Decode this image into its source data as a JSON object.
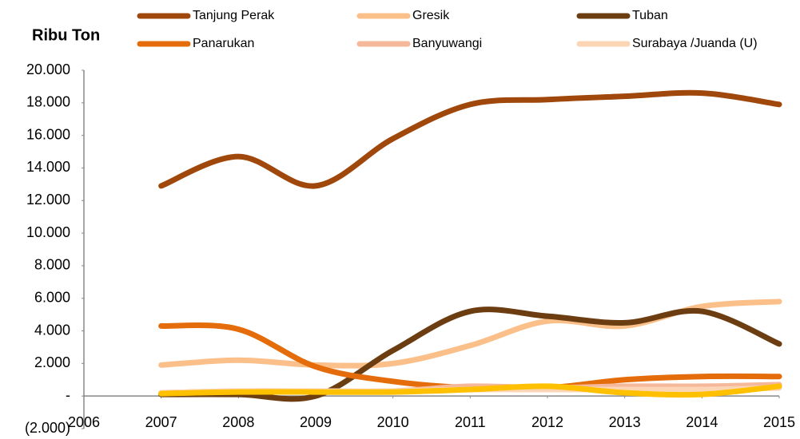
{
  "chart_data": {
    "type": "line",
    "title": "Ribu Ton",
    "x": [
      2007,
      2008,
      2009,
      2010,
      2011,
      2012,
      2013,
      2014,
      2015
    ],
    "xlim": [
      2006,
      2015
    ],
    "xticks": [
      2006,
      2007,
      2008,
      2009,
      2010,
      2011,
      2012,
      2013,
      2014,
      2015
    ],
    "ylim": [
      -2000,
      20000
    ],
    "yticks": [
      {
        "value": -2000,
        "label": "(2.000)"
      },
      {
        "value": 0,
        "label": "-"
      },
      {
        "value": 2000,
        "label": "2.000"
      },
      {
        "value": 4000,
        "label": "4.000"
      },
      {
        "value": 6000,
        "label": "6.000"
      },
      {
        "value": 8000,
        "label": "8.000"
      },
      {
        "value": 10000,
        "label": "10.000"
      },
      {
        "value": 12000,
        "label": "12.000"
      },
      {
        "value": 14000,
        "label": "14.000"
      },
      {
        "value": 16000,
        "label": "16.000"
      },
      {
        "value": 18000,
        "label": "18.000"
      },
      {
        "value": 20000,
        "label": "20.000"
      }
    ],
    "grid": false,
    "series": [
      {
        "name": "Tanjung Perak",
        "color": "#a0480c",
        "values": [
          12900,
          14700,
          12900,
          15800,
          17900,
          18200,
          18400,
          18600,
          17900
        ]
      },
      {
        "name": "Gresik",
        "color": "#fbbf8a",
        "values": [
          1900,
          2200,
          1900,
          2000,
          3100,
          4600,
          4300,
          5500,
          5800
        ]
      },
      {
        "name": "Tuban",
        "color": "#6b3d10",
        "values": [
          100,
          100,
          0,
          2800,
          5200,
          4900,
          4500,
          5200,
          3200
        ]
      },
      {
        "name": "Panarukan",
        "color": "#e46c0a",
        "values": [
          4300,
          4100,
          1800,
          900,
          500,
          500,
          1000,
          1200,
          1200
        ]
      },
      {
        "name": "Banyuwangi",
        "color": "#f5b89a",
        "values": [
          200,
          300,
          300,
          300,
          600,
          500,
          600,
          600,
          700
        ]
      },
      {
        "name": "Surabaya /Juanda (U)",
        "color": "#fcd5b5",
        "values": [
          200,
          300,
          300,
          300,
          400,
          400,
          400,
          400,
          500
        ]
      },
      {
        "color": "#ffc000",
        "values": [
          150,
          250,
          250,
          250,
          400,
          600,
          200,
          100,
          600
        ]
      }
    ]
  }
}
